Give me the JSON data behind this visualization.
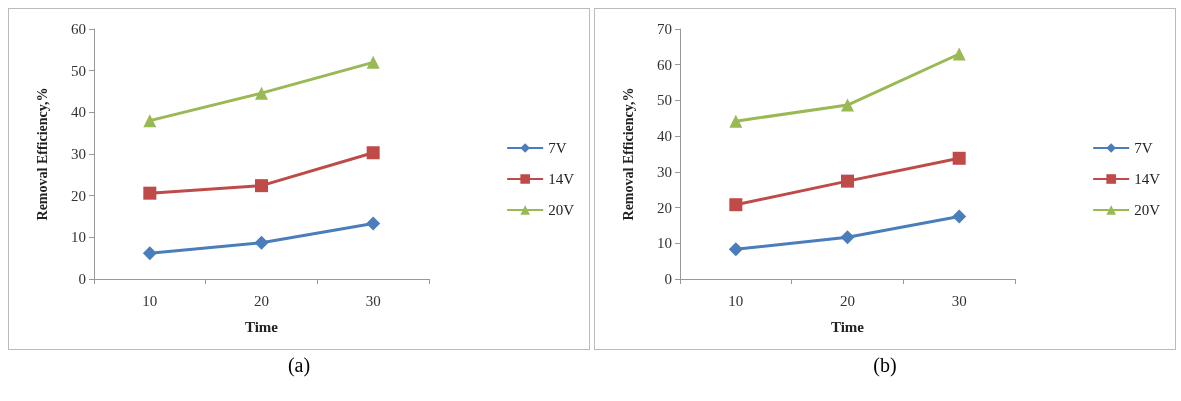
{
  "chart_data": [
    {
      "type": "line",
      "categories": [
        "10",
        "20",
        "30"
      ],
      "xlabel": "Time",
      "ylabel": "Removal Efficiency,%",
      "ylim": [
        0,
        60
      ],
      "yticks": [
        0,
        10,
        20,
        30,
        40,
        50,
        60
      ],
      "grid": false,
      "legend": "right",
      "annotations": [
        "(a)"
      ],
      "series": [
        {
          "name": "7V",
          "color": "#4a7ebb",
          "marker": "diamond",
          "values": [
            6.2,
            8.7,
            13.3
          ]
        },
        {
          "name": "14V",
          "color": "#be4b48",
          "marker": "square",
          "values": [
            20.6,
            22.4,
            30.3
          ]
        },
        {
          "name": "20V",
          "color": "#98b954",
          "marker": "triangle",
          "values": [
            38,
            44.6,
            52
          ]
        }
      ]
    },
    {
      "type": "line",
      "categories": [
        "10",
        "20",
        "30"
      ],
      "xlabel": "Time",
      "ylabel": "Removal Efficiency,%",
      "ylim": [
        0,
        70
      ],
      "yticks": [
        0,
        10,
        20,
        30,
        40,
        50,
        60,
        70
      ],
      "grid": false,
      "legend": "right",
      "annotations": [
        "(b)"
      ],
      "series": [
        {
          "name": "7V",
          "color": "#4a7ebb",
          "marker": "diamond",
          "values": [
            8.3,
            11.7,
            17.5
          ]
        },
        {
          "name": "14V",
          "color": "#be4b48",
          "marker": "square",
          "values": [
            20.8,
            27.4,
            33.8
          ]
        },
        {
          "name": "20V",
          "color": "#98b954",
          "marker": "triangle",
          "values": [
            44.2,
            48.7,
            63
          ]
        }
      ]
    }
  ]
}
